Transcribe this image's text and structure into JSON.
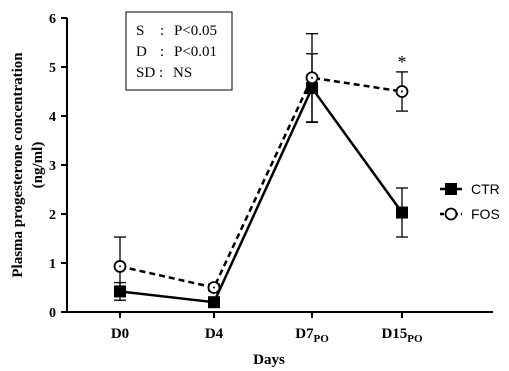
{
  "chart_data": {
    "type": "line",
    "categories": [
      {
        "main": "D0",
        "sub": ""
      },
      {
        "main": "D4",
        "sub": ""
      },
      {
        "main": "D7",
        "sub": "PO"
      },
      {
        "main": "D15",
        "sub": "PO"
      }
    ],
    "series": [
      {
        "name": "CTR",
        "values": [
          0.42,
          0.2,
          4.57,
          2.03
        ],
        "error": [
          0.18,
          0.07,
          0.7,
          0.5
        ],
        "line_style": "solid",
        "marker": "filled-square",
        "color": "#000000"
      },
      {
        "name": "FOS",
        "values": [
          0.93,
          0.5,
          4.78,
          4.5
        ],
        "error": [
          0.6,
          0.07,
          0.9,
          0.4
        ],
        "line_style": "dashed",
        "marker": "open-circle",
        "color": "#000000"
      }
    ],
    "ylabel_line1": "Plasma progesterone concentration",
    "ylabel_line2": "(ng/ml)",
    "xlabel": "Days",
    "ylim": [
      0,
      6
    ],
    "yticks": [
      0,
      1,
      2,
      3,
      4,
      5,
      6
    ],
    "stats_box": [
      {
        "key": "S",
        "sep": ": ",
        "text": "P<0.05"
      },
      {
        "key": "D",
        "sep": ": ",
        "text": "P<0.01"
      },
      {
        "key": "SD",
        "sep": ": ",
        "text": "NS"
      }
    ],
    "annotation": {
      "category_index": 3,
      "text": "*"
    },
    "legend_position": "right",
    "grid": false
  }
}
